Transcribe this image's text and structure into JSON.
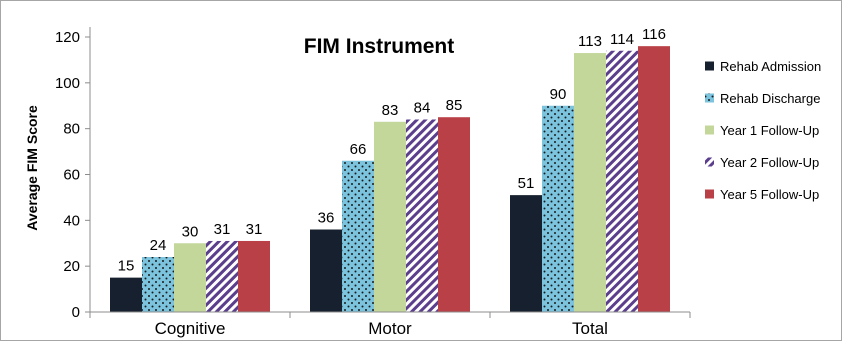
{
  "chart_data": {
    "type": "bar",
    "title": "FIM Instrument",
    "ylabel": "Average FIM Score",
    "xlabel": "",
    "ylim": [
      0,
      120
    ],
    "yticks": [
      0,
      20,
      40,
      60,
      80,
      100,
      120
    ],
    "grid": false,
    "legend_position": "right",
    "categories": [
      "Cognitive",
      "Motor",
      "Total"
    ],
    "series": [
      {
        "name": "Rehab Admission",
        "values": [
          15,
          36,
          51
        ],
        "color": "#17202e",
        "pattern": "solid"
      },
      {
        "name": "Rehab Discharge",
        "values": [
          24,
          66,
          90
        ],
        "color": "#7cc3de",
        "pattern": "dots"
      },
      {
        "name": "Year 1 Follow-Up",
        "values": [
          30,
          83,
          113
        ],
        "color": "#c4d79b",
        "pattern": "solid"
      },
      {
        "name": "Year 2 Follow-Up",
        "values": [
          31,
          84,
          114
        ],
        "color": "#5b3e8c",
        "pattern": "diagonal-stripes"
      },
      {
        "name": "Year 5 Follow-Up",
        "values": [
          31,
          85,
          116
        ],
        "color": "#b84046",
        "pattern": "solid"
      }
    ]
  }
}
